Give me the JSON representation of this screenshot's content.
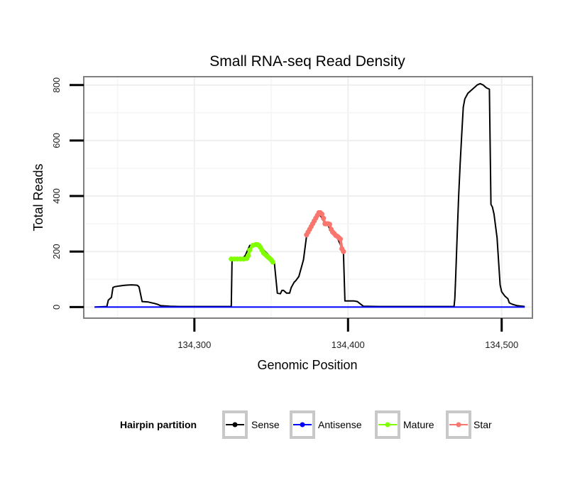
{
  "chart_data": {
    "type": "line",
    "title": "Small RNA-seq Read Density",
    "xlabel": "Genomic Position",
    "ylabel": "Total Reads",
    "xlim": [
      134228,
      134520
    ],
    "ylim": [
      -40,
      830
    ],
    "x_ticks": [
      134300,
      134400,
      134500
    ],
    "x_tick_labels": [
      "134,300",
      "134,400",
      "134,500"
    ],
    "y_ticks": [
      0,
      200,
      400,
      600,
      800
    ],
    "y_tick_labels": [
      "0",
      "200",
      "400",
      "600",
      "800"
    ],
    "grid": true,
    "legend": {
      "title": "Hairpin partition",
      "position": "bottom",
      "entries": [
        {
          "name": "Sense",
          "color": "#000000"
        },
        {
          "name": "Antisense",
          "color": "#0000ff"
        },
        {
          "name": "Mature",
          "color": "#7fff00"
        },
        {
          "name": "Star",
          "color": "#f8766d"
        }
      ]
    },
    "series": [
      {
        "name": "Sense",
        "color": "#000000",
        "markers": false,
        "x": [
          134235,
          134243,
          134244,
          134246,
          134247,
          134248,
          134251,
          134254,
          134256,
          134259,
          134262,
          134263,
          134264,
          134266,
          134270,
          134274,
          134276,
          134278,
          134284,
          134290,
          134300,
          134310,
          134323,
          134324,
          134324.5,
          134328,
          134331,
          134333,
          134336,
          134340,
          134343,
          134347,
          134349,
          134351,
          134352,
          134354,
          134356,
          134357,
          134358,
          134360,
          134362,
          134363,
          134365,
          134366,
          134368,
          134371,
          134373,
          134375,
          134377,
          134379,
          134381,
          134383,
          134385,
          134387,
          134389,
          134391,
          134393,
          134395,
          134396,
          134397,
          134398,
          134403,
          134404,
          134406,
          134410,
          134420,
          134440,
          134460,
          134469,
          134469.5,
          134470,
          134471,
          134472,
          134473,
          134474,
          134475,
          134476,
          134478,
          134480,
          134482,
          134484,
          134486,
          134488,
          134490,
          134492,
          134493,
          134494,
          134495,
          134497,
          134499,
          134500,
          134502,
          134504,
          134505,
          134507,
          134510,
          134515
        ],
        "y": [
          0,
          2,
          25,
          35,
          70,
          73,
          76,
          78,
          79,
          80,
          79,
          78,
          72,
          20,
          18,
          13,
          10,
          5,
          3,
          2,
          2,
          2,
          2,
          2,
          173,
          173,
          175,
          185,
          222,
          225,
          215,
          195,
          183,
          172,
          162,
          50,
          48,
          60,
          60,
          50,
          50,
          70,
          90,
          95,
          110,
          170,
          255,
          275,
          300,
          320,
          340,
          320,
          300,
          295,
          270,
          258,
          250,
          225,
          205,
          198,
          22,
          22,
          22,
          20,
          3,
          2,
          2,
          2,
          2,
          30,
          100,
          250,
          400,
          520,
          620,
          720,
          750,
          770,
          780,
          790,
          800,
          805,
          800,
          790,
          785,
          370,
          360,
          335,
          250,
          80,
          55,
          40,
          30,
          15,
          10,
          5,
          2
        ]
      },
      {
        "name": "Antisense",
        "color": "#0000ff",
        "markers": false,
        "x": [
          134235,
          134515
        ],
        "y": [
          0,
          0
        ]
      },
      {
        "name": "Mature",
        "color": "#7fff00",
        "markers": true,
        "x": [
          134324,
          134326,
          134328,
          134330,
          134332,
          134334,
          134335,
          134336,
          134338,
          134340,
          134341,
          134342,
          134343,
          134344,
          134345,
          134346,
          134347,
          134348,
          134349,
          134350,
          134351
        ],
        "y": [
          173,
          173,
          173,
          173,
          173,
          175,
          185,
          205,
          222,
          225,
          225,
          222,
          215,
          205,
          195,
          190,
          185,
          180,
          175,
          170,
          162
        ]
      },
      {
        "name": "Star",
        "color": "#f8766d",
        "markers": true,
        "x": [
          134373,
          134374,
          134375,
          134376,
          134377,
          134378,
          134379,
          134380,
          134381,
          134382,
          134383,
          134384,
          134385,
          134386,
          134387,
          134388,
          134389,
          134390,
          134391,
          134392,
          134393,
          134394,
          134395,
          134396,
          134397
        ],
        "y": [
          260,
          270,
          280,
          290,
          300,
          310,
          320,
          330,
          340,
          340,
          335,
          320,
          300,
          300,
          300,
          298,
          280,
          270,
          265,
          258,
          255,
          250,
          245,
          210,
          200
        ]
      }
    ]
  }
}
